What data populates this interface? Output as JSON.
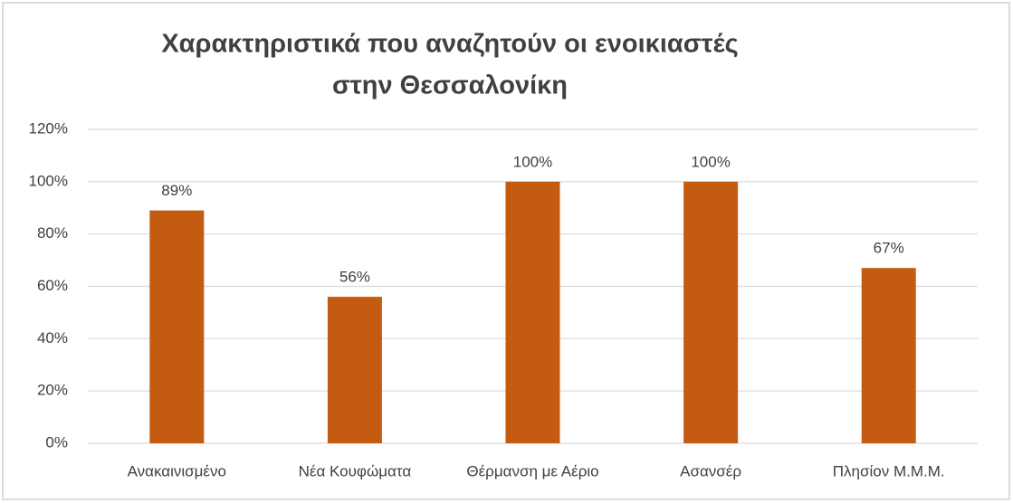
{
  "chart_data": {
    "type": "bar",
    "title": [
      "Χαρακτηριστικά που αναζητούν οι ενοικιαστές",
      "στην Θεσσαλονίκη"
    ],
    "categories": [
      "Ανακαινισμένο",
      "Νέα Κουφώματα",
      "Θέρμανση με Αέριο",
      "Ασανσέρ",
      "Πλησίον Μ.Μ.Μ."
    ],
    "values": [
      89,
      56,
      100,
      100,
      67
    ],
    "value_labels": [
      "89%",
      "56%",
      "100%",
      "100%",
      "67%"
    ],
    "color": "#c55a11",
    "ylim": [
      0,
      120
    ],
    "yticks": [
      {
        "value": 0,
        "label": "0%"
      },
      {
        "value": 20,
        "label": "20%"
      },
      {
        "value": 40,
        "label": "40%"
      },
      {
        "value": 60,
        "label": "60%"
      },
      {
        "value": 80,
        "label": "80%"
      },
      {
        "value": 100,
        "label": "100%"
      },
      {
        "value": 120,
        "label": "120%"
      }
    ],
    "grid": true
  }
}
